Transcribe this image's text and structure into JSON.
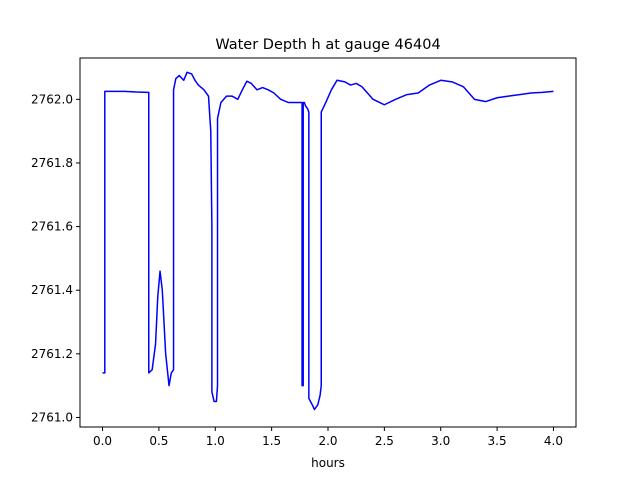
{
  "chart_data": {
    "type": "line",
    "title": "Water Depth h at gauge 46404",
    "xlabel": "hours",
    "ylabel": "",
    "xlim": [
      -0.2,
      4.2
    ],
    "ylim": [
      2760.97,
      2762.13
    ],
    "xticks": [
      0.0,
      0.5,
      1.0,
      1.5,
      2.0,
      2.5,
      3.0,
      3.5,
      4.0
    ],
    "xtick_labels": [
      "0.0",
      "0.5",
      "1.0",
      "1.5",
      "2.0",
      "2.5",
      "3.0",
      "3.5",
      "4.0"
    ],
    "yticks": [
      2761.0,
      2761.2,
      2761.4,
      2761.6,
      2761.8,
      2762.0
    ],
    "ytick_labels": [
      "2761.0",
      "2761.2",
      "2761.4",
      "2761.6",
      "2761.8",
      "2762.0"
    ],
    "grid": false,
    "series": [
      {
        "color": "#0000ff",
        "x": [
          0.0,
          0.02,
          0.02,
          0.1,
          0.2,
          0.3,
          0.4,
          0.41,
          0.41,
          0.44,
          0.47,
          0.49,
          0.51,
          0.53,
          0.56,
          0.59,
          0.61,
          0.63,
          0.63,
          0.65,
          0.68,
          0.72,
          0.75,
          0.79,
          0.82,
          0.85,
          0.9,
          0.94,
          0.96,
          0.97,
          0.97,
          0.99,
          1.01,
          1.02,
          1.02,
          1.05,
          1.1,
          1.15,
          1.2,
          1.24,
          1.28,
          1.32,
          1.37,
          1.42,
          1.47,
          1.52,
          1.58,
          1.65,
          1.73,
          1.76,
          1.77,
          1.77,
          1.78,
          1.78,
          1.79,
          1.8,
          1.82,
          1.83,
          1.83,
          1.86,
          1.88,
          1.91,
          1.93,
          1.94,
          1.94,
          1.98,
          2.03,
          2.08,
          2.15,
          2.2,
          2.25,
          2.3,
          2.4,
          2.5,
          2.6,
          2.7,
          2.8,
          2.9,
          3.0,
          3.1,
          3.2,
          3.3,
          3.4,
          3.5,
          3.6,
          3.7,
          3.8,
          3.9,
          4.0
        ],
        "y": [
          2761.14,
          2761.14,
          2762.025,
          2762.025,
          2762.025,
          2762.023,
          2762.022,
          2762.022,
          2761.14,
          2761.15,
          2761.23,
          2761.38,
          2761.46,
          2761.4,
          2761.2,
          2761.1,
          2761.14,
          2761.15,
          2762.03,
          2762.065,
          2762.075,
          2762.06,
          2762.085,
          2762.08,
          2762.06,
          2762.045,
          2762.03,
          2762.01,
          2761.9,
          2761.6,
          2761.08,
          2761.05,
          2761.05,
          2761.1,
          2761.94,
          2761.99,
          2762.01,
          2762.01,
          2762.0,
          2762.03,
          2762.057,
          2762.05,
          2762.03,
          2762.037,
          2762.03,
          2762.02,
          2762.0,
          2761.99,
          2761.99,
          2761.99,
          2761.99,
          2761.1,
          2761.1,
          2761.99,
          2761.99,
          2761.98,
          2761.97,
          2761.96,
          2761.06,
          2761.04,
          2761.025,
          2761.04,
          2761.07,
          2761.1,
          2761.96,
          2761.99,
          2762.03,
          2762.06,
          2762.055,
          2762.045,
          2762.05,
          2762.04,
          2762.0,
          2761.983,
          2762.0,
          2762.015,
          2762.02,
          2762.045,
          2762.06,
          2762.055,
          2762.04,
          2762.0,
          2761.993,
          2762.005,
          2762.01,
          2762.015,
          2762.02,
          2762.022,
          2762.025
        ]
      }
    ]
  }
}
